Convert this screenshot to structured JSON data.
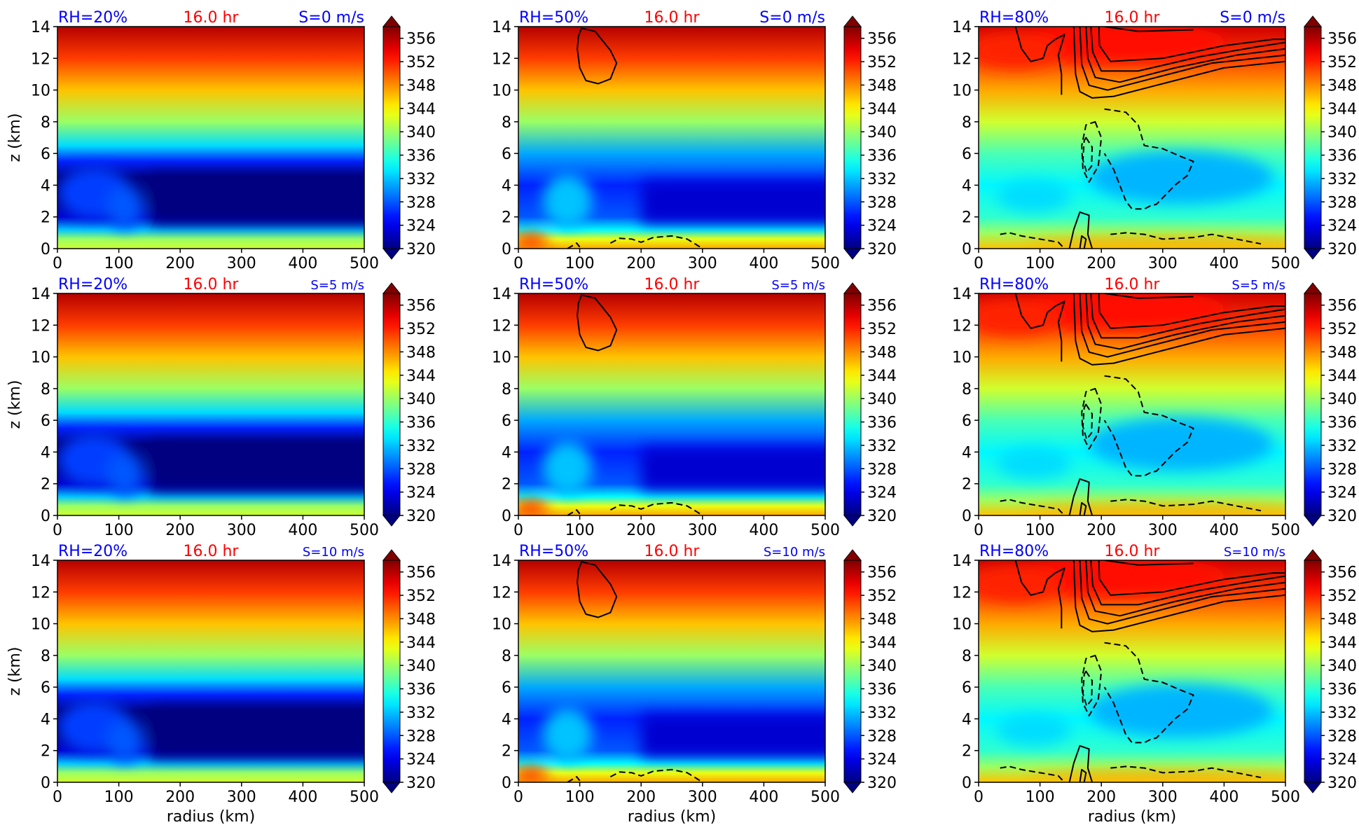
{
  "figure": {
    "panels": [
      {
        "rh": "RH=20%",
        "time": "16.0 hr",
        "shear": "S=0 m/s",
        "shear_small": false,
        "ylabel": "z (km)",
        "xlabel": "",
        "contours": "none"
      },
      {
        "rh": "RH=50%",
        "time": "16.0 hr",
        "shear": "S=0 m/s",
        "shear_small": false,
        "ylabel": "",
        "xlabel": "",
        "contours": "rh50"
      },
      {
        "rh": "RH=80%",
        "time": "16.0 hr",
        "shear": "S=0 m/s",
        "shear_small": false,
        "ylabel": "",
        "xlabel": "",
        "contours": "rh80"
      },
      {
        "rh": "RH=20%",
        "time": "16.0 hr",
        "shear": "S=5 m/s",
        "shear_small": true,
        "ylabel": "z (km)",
        "xlabel": "",
        "contours": "none"
      },
      {
        "rh": "RH=50%",
        "time": "16.0 hr",
        "shear": "S=5 m/s",
        "shear_small": true,
        "ylabel": "",
        "xlabel": "",
        "contours": "rh50"
      },
      {
        "rh": "RH=80%",
        "time": "16.0 hr",
        "shear": "S=5 m/s",
        "shear_small": true,
        "ylabel": "",
        "xlabel": "",
        "contours": "rh80"
      },
      {
        "rh": "RH=20%",
        "time": "16.0 hr",
        "shear": "S=10 m/s",
        "shear_small": true,
        "ylabel": "z (km)",
        "xlabel": "radius (km)",
        "contours": "none"
      },
      {
        "rh": "RH=50%",
        "time": "16.0 hr",
        "shear": "S=10 m/s",
        "shear_small": true,
        "ylabel": "",
        "xlabel": "radius (km)",
        "contours": "rh50"
      },
      {
        "rh": "RH=80%",
        "time": "16.0 hr",
        "shear": "S=10 m/s",
        "shear_small": true,
        "ylabel": "",
        "xlabel": "radius (km)",
        "contours": "rh80"
      }
    ],
    "colors": {
      "rh_label": "#0000ff",
      "time_label": "#ff0000"
    }
  },
  "chart_data": {
    "type": "heatmap",
    "x_range": [
      0,
      500
    ],
    "y_range": [
      0,
      14
    ],
    "x_ticks": [
      0,
      100,
      200,
      300,
      400,
      500
    ],
    "y_ticks": [
      0,
      2,
      4,
      6,
      8,
      10,
      12,
      14
    ],
    "colorbar": {
      "ticks": [
        320,
        324,
        328,
        332,
        336,
        340,
        344,
        348,
        352,
        356
      ],
      "range": [
        320,
        358
      ],
      "colormap": "jet",
      "extend": "both"
    },
    "fields": {
      "rh20": {
        "desc_values_km_K": [
          [
            0,
            342
          ],
          [
            0.6,
            340
          ],
          [
            1.2,
            332
          ],
          [
            2,
            323
          ],
          [
            3,
            320
          ],
          [
            4.5,
            320
          ],
          [
            5.5,
            326
          ],
          [
            6.5,
            333
          ],
          [
            8,
            340
          ],
          [
            10,
            346
          ],
          [
            12,
            351
          ],
          [
            14,
            356
          ]
        ]
      },
      "rh50": {
        "desc_values_km_K": [
          [
            0,
            347
          ],
          [
            0.6,
            343
          ],
          [
            1.2,
            334
          ],
          [
            2,
            328
          ],
          [
            4,
            326
          ],
          [
            6,
            331
          ],
          [
            8,
            340
          ],
          [
            10,
            346
          ],
          [
            12,
            351
          ],
          [
            14,
            356
          ]
        ]
      },
      "rh80": {
        "desc_values_km_K": [
          [
            0,
            346
          ],
          [
            1,
            340
          ],
          [
            2,
            336
          ],
          [
            4,
            334
          ],
          [
            6,
            337
          ],
          [
            8,
            342
          ],
          [
            10,
            347
          ],
          [
            12,
            351
          ],
          [
            14,
            355
          ]
        ]
      }
    }
  }
}
